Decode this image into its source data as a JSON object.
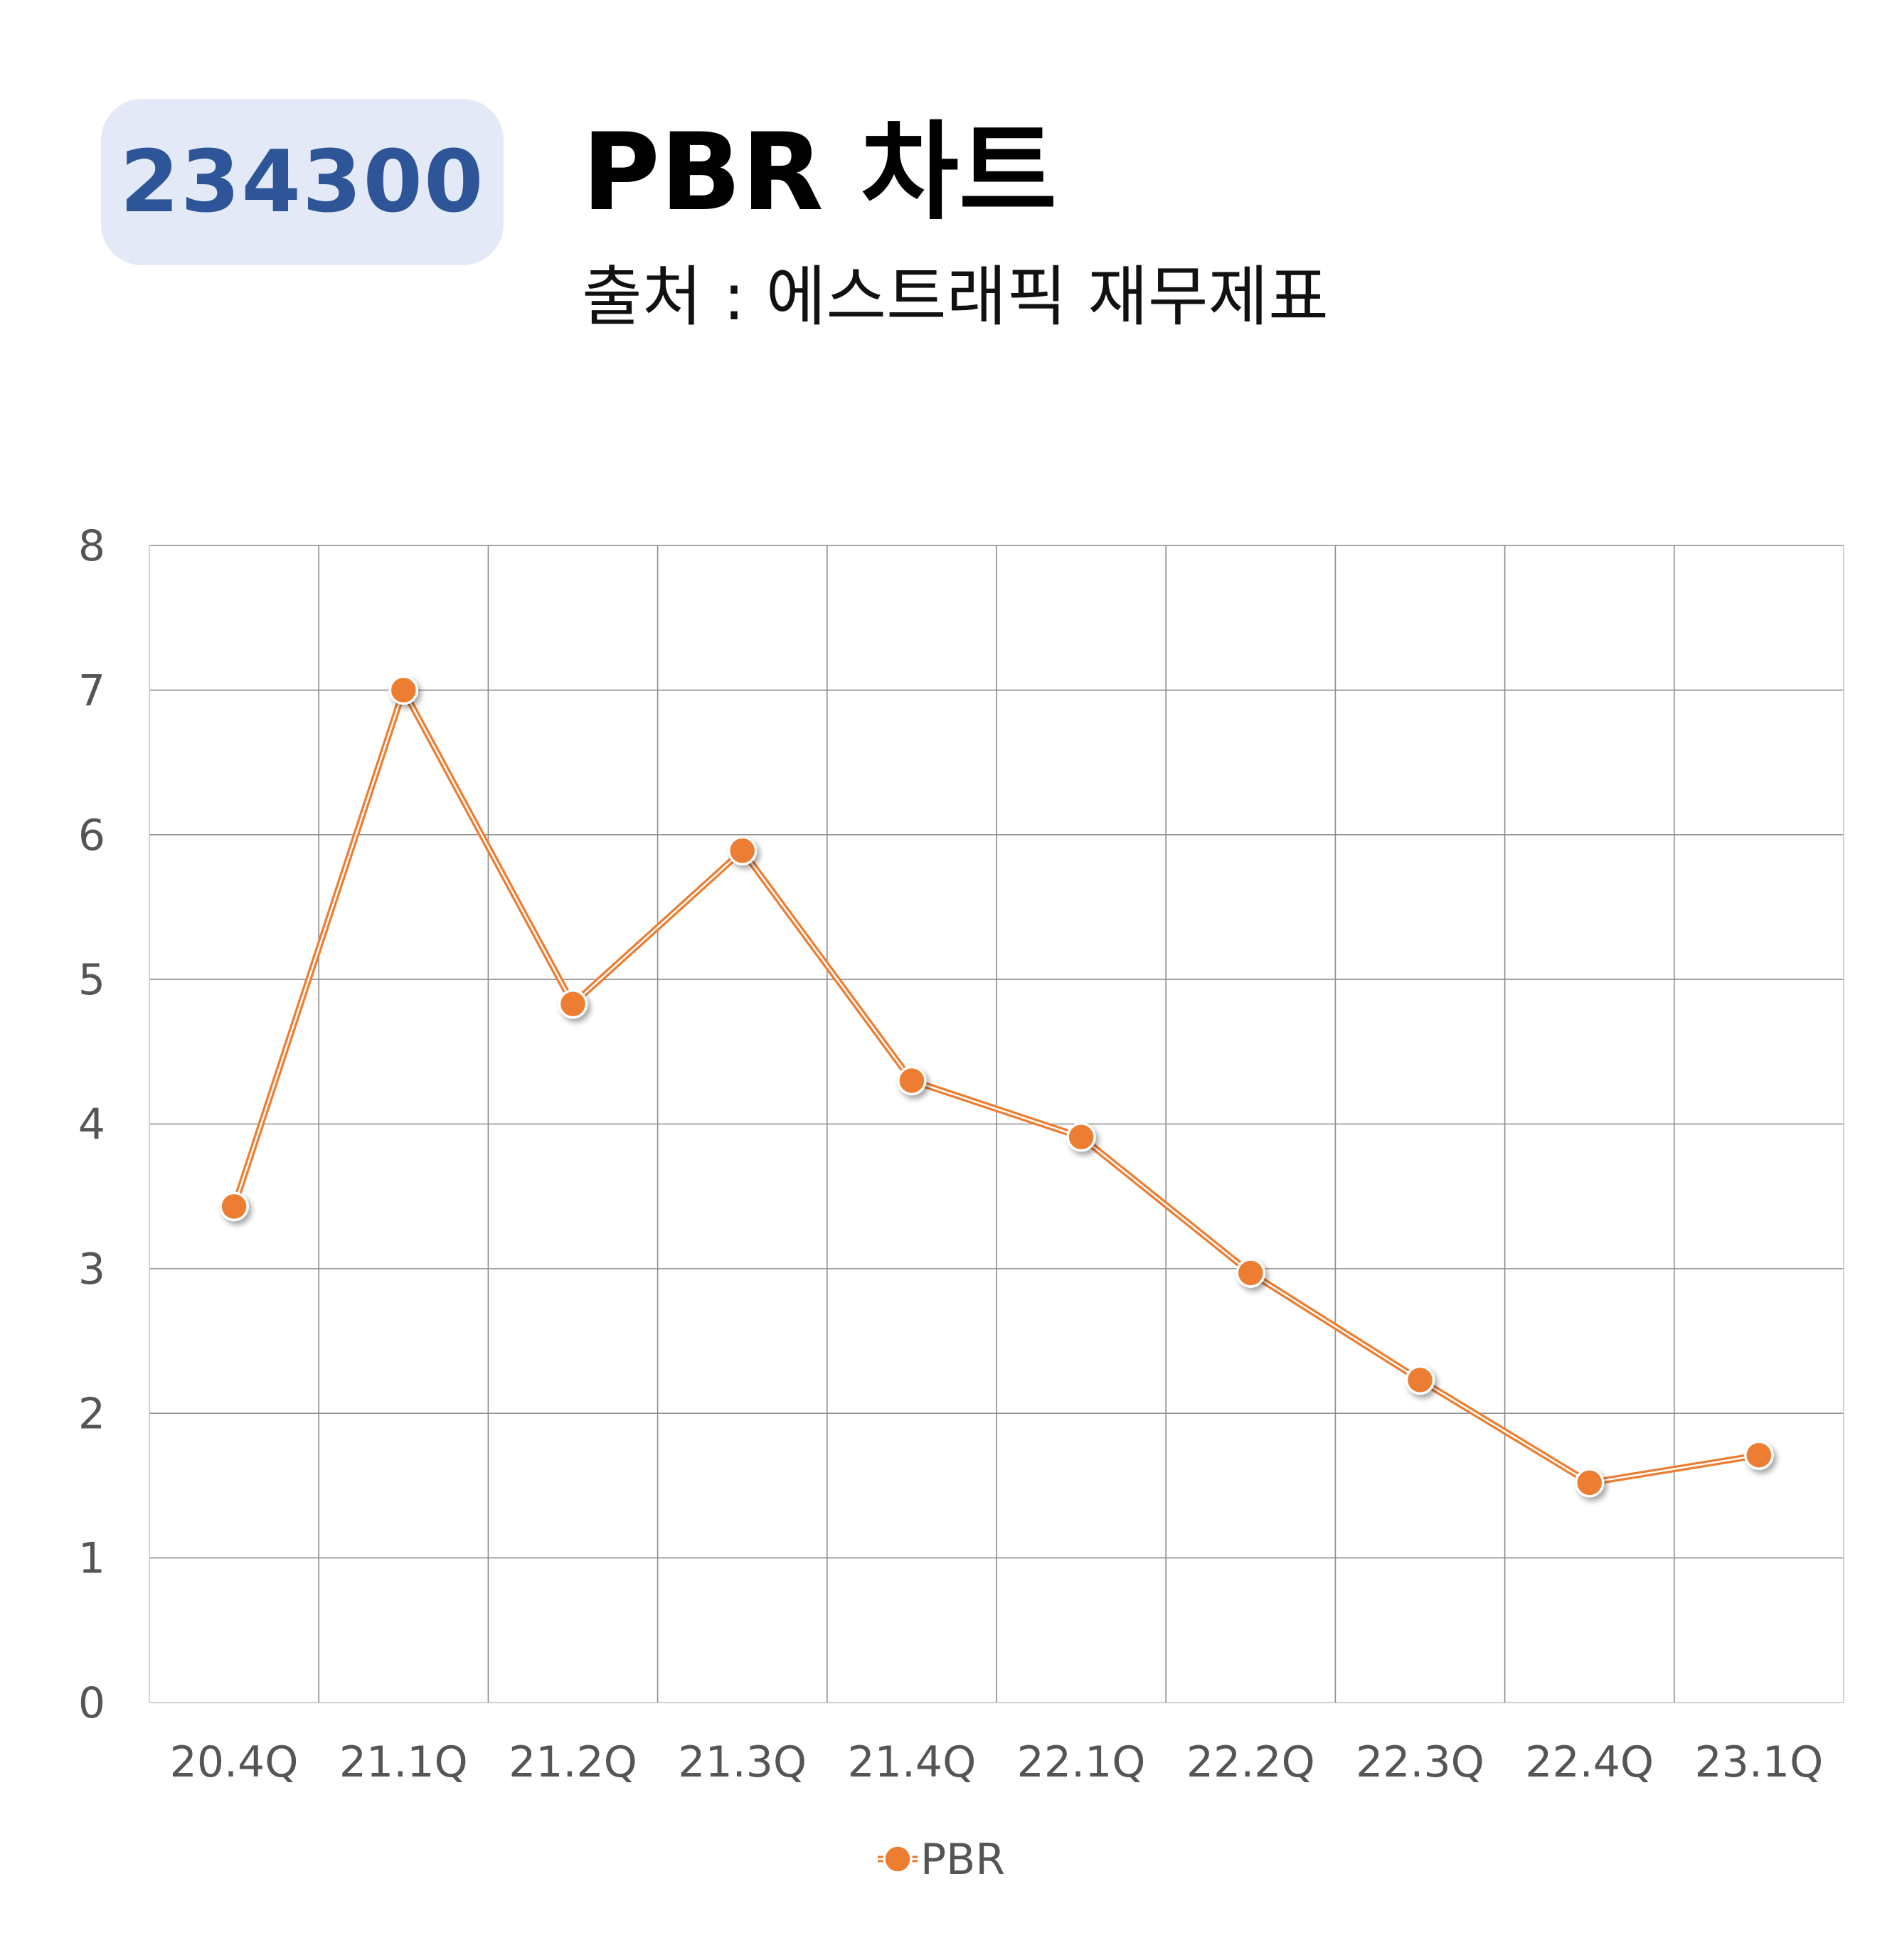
{
  "header": {
    "code": "234300",
    "title": "PBR 차트",
    "subtitle": "출처 : 에스트래픽 재무제표"
  },
  "chart_data": {
    "type": "line",
    "categories": [
      "20.4Q",
      "21.1Q",
      "21.2Q",
      "21.3Q",
      "21.4Q",
      "22.1Q",
      "22.2Q",
      "22.3Q",
      "22.4Q",
      "23.1Q"
    ],
    "series": [
      {
        "name": "PBR",
        "values": [
          3.43,
          7.0,
          4.83,
          5.89,
          4.3,
          3.91,
          2.97,
          2.23,
          1.52,
          1.71
        ],
        "color": "#ed7d31"
      }
    ],
    "ylim": [
      0,
      8
    ],
    "yticks": [
      0,
      1,
      2,
      3,
      4,
      5,
      6,
      7,
      8
    ],
    "grid": true,
    "legend_position": "bottom"
  }
}
